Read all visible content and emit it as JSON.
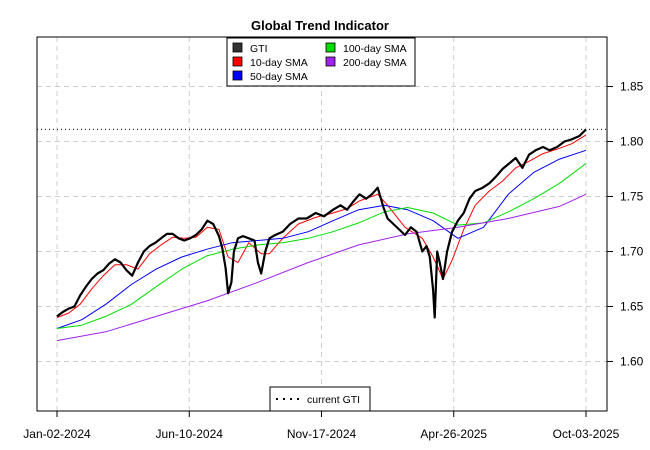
{
  "chart_data": {
    "type": "line",
    "title": "Global Trend Indicator",
    "xlabel": "",
    "ylabel": "",
    "x_tick_labels": [
      "Jan-02-2024",
      "Jun-10-2024",
      "Nov-17-2024",
      "Apr-26-2025",
      "Oct-03-2025"
    ],
    "x_range": [
      "2024-01-02",
      "2025-10-03"
    ],
    "y_ticks": [
      "1.60",
      "1.65",
      "1.70",
      "1.75",
      "1.80",
      "1.85"
    ],
    "ylim": [
      1.555,
      1.895
    ],
    "grid": true,
    "legend_position": "top-center",
    "reference_line": {
      "label": "current GTI",
      "value": 1.811,
      "style": "dotted",
      "legend_position": "bottom-center"
    },
    "series": [
      {
        "name": "GTI",
        "color": "#000000",
        "legend_color": "#333333",
        "points": [
          [
            "2024-01-02",
            1.641
          ],
          [
            "2024-01-09",
            1.645
          ],
          [
            "2024-01-16",
            1.648
          ],
          [
            "2024-01-23",
            1.65
          ],
          [
            "2024-01-30",
            1.66
          ],
          [
            "2024-02-06",
            1.668
          ],
          [
            "2024-02-13",
            1.675
          ],
          [
            "2024-02-20",
            1.68
          ],
          [
            "2024-02-27",
            1.683
          ],
          [
            "2024-03-05",
            1.689
          ],
          [
            "2024-03-12",
            1.693
          ],
          [
            "2024-03-19",
            1.69
          ],
          [
            "2024-03-26",
            1.683
          ],
          [
            "2024-04-02",
            1.678
          ],
          [
            "2024-04-09",
            1.69
          ],
          [
            "2024-04-16",
            1.7
          ],
          [
            "2024-04-23",
            1.705
          ],
          [
            "2024-04-30",
            1.708
          ],
          [
            "2024-05-07",
            1.712
          ],
          [
            "2024-05-14",
            1.716
          ],
          [
            "2024-05-21",
            1.716
          ],
          [
            "2024-05-28",
            1.712
          ],
          [
            "2024-06-04",
            1.71
          ],
          [
            "2024-06-11",
            1.712
          ],
          [
            "2024-06-18",
            1.715
          ],
          [
            "2024-06-25",
            1.72
          ],
          [
            "2024-07-02",
            1.728
          ],
          [
            "2024-07-09",
            1.725
          ],
          [
            "2024-07-16",
            1.714
          ],
          [
            "2024-07-20",
            1.703
          ],
          [
            "2024-07-24",
            1.685
          ],
          [
            "2024-07-27",
            1.662
          ],
          [
            "2024-07-31",
            1.672
          ],
          [
            "2024-08-03",
            1.7
          ],
          [
            "2024-08-08",
            1.712
          ],
          [
            "2024-08-14",
            1.714
          ],
          [
            "2024-08-21",
            1.712
          ],
          [
            "2024-08-28",
            1.71
          ],
          [
            "2024-09-01",
            1.69
          ],
          [
            "2024-09-05",
            1.68
          ],
          [
            "2024-09-10",
            1.7
          ],
          [
            "2024-09-15",
            1.712
          ],
          [
            "2024-09-22",
            1.715
          ],
          [
            "2024-10-01",
            1.718
          ],
          [
            "2024-10-10",
            1.725
          ],
          [
            "2024-10-20",
            1.73
          ],
          [
            "2024-10-30",
            1.73
          ],
          [
            "2024-11-10",
            1.735
          ],
          [
            "2024-11-20",
            1.732
          ],
          [
            "2024-12-01",
            1.738
          ],
          [
            "2024-12-10",
            1.742
          ],
          [
            "2024-12-18",
            1.738
          ],
          [
            "2024-12-25",
            1.745
          ],
          [
            "2025-01-02",
            1.752
          ],
          [
            "2025-01-10",
            1.748
          ],
          [
            "2025-01-17",
            1.752
          ],
          [
            "2025-01-24",
            1.758
          ],
          [
            "2025-01-31",
            1.74
          ],
          [
            "2025-02-05",
            1.73
          ],
          [
            "2025-02-12",
            1.725
          ],
          [
            "2025-02-19",
            1.72
          ],
          [
            "2025-02-26",
            1.715
          ],
          [
            "2025-03-05",
            1.722
          ],
          [
            "2025-03-12",
            1.718
          ],
          [
            "2025-03-19",
            1.7
          ],
          [
            "2025-03-24",
            1.705
          ],
          [
            "2025-03-28",
            1.695
          ],
          [
            "2025-04-01",
            1.665
          ],
          [
            "2025-04-03",
            1.64
          ],
          [
            "2025-04-06",
            1.7
          ],
          [
            "2025-04-09",
            1.69
          ],
          [
            "2025-04-13",
            1.675
          ],
          [
            "2025-04-18",
            1.7
          ],
          [
            "2025-04-24",
            1.718
          ],
          [
            "2025-05-01",
            1.728
          ],
          [
            "2025-05-08",
            1.735
          ],
          [
            "2025-05-15",
            1.748
          ],
          [
            "2025-05-22",
            1.755
          ],
          [
            "2025-05-31",
            1.758
          ],
          [
            "2025-06-08",
            1.762
          ],
          [
            "2025-06-16",
            1.768
          ],
          [
            "2025-06-24",
            1.775
          ],
          [
            "2025-07-02",
            1.78
          ],
          [
            "2025-07-10",
            1.785
          ],
          [
            "2025-07-18",
            1.776
          ],
          [
            "2025-07-26",
            1.788
          ],
          [
            "2025-08-03",
            1.792
          ],
          [
            "2025-08-12",
            1.795
          ],
          [
            "2025-08-20",
            1.792
          ],
          [
            "2025-08-29",
            1.795
          ],
          [
            "2025-09-07",
            1.8
          ],
          [
            "2025-09-16",
            1.802
          ],
          [
            "2025-09-25",
            1.805
          ],
          [
            "2025-10-03",
            1.811
          ]
        ]
      },
      {
        "name": "10-day SMA",
        "color": "#ff0000",
        "legend_color": "#ff0000",
        "points": [
          [
            "2024-01-02",
            1.64
          ],
          [
            "2024-01-16",
            1.644
          ],
          [
            "2024-01-30",
            1.652
          ],
          [
            "2024-02-13",
            1.666
          ],
          [
            "2024-02-27",
            1.678
          ],
          [
            "2024-03-12",
            1.688
          ],
          [
            "2024-03-26",
            1.688
          ],
          [
            "2024-04-09",
            1.684
          ],
          [
            "2024-04-23",
            1.698
          ],
          [
            "2024-05-07",
            1.706
          ],
          [
            "2024-05-21",
            1.713
          ],
          [
            "2024-06-04",
            1.712
          ],
          [
            "2024-06-18",
            1.713
          ],
          [
            "2024-07-02",
            1.722
          ],
          [
            "2024-07-16",
            1.72
          ],
          [
            "2024-07-27",
            1.695
          ],
          [
            "2024-08-08",
            1.69
          ],
          [
            "2024-08-21",
            1.708
          ],
          [
            "2024-09-05",
            1.698
          ],
          [
            "2024-09-15",
            1.698
          ],
          [
            "2024-10-01",
            1.712
          ],
          [
            "2024-10-20",
            1.725
          ],
          [
            "2024-11-10",
            1.731
          ],
          [
            "2024-12-01",
            1.735
          ],
          [
            "2024-12-18",
            1.739
          ],
          [
            "2025-01-02",
            1.746
          ],
          [
            "2025-01-24",
            1.752
          ],
          [
            "2025-02-05",
            1.742
          ],
          [
            "2025-02-26",
            1.722
          ],
          [
            "2025-03-19",
            1.712
          ],
          [
            "2025-04-01",
            1.695
          ],
          [
            "2025-04-13",
            1.675
          ],
          [
            "2025-04-24",
            1.692
          ],
          [
            "2025-05-08",
            1.72
          ],
          [
            "2025-05-22",
            1.742
          ],
          [
            "2025-06-08",
            1.755
          ],
          [
            "2025-06-24",
            1.764
          ],
          [
            "2025-07-10",
            1.776
          ],
          [
            "2025-07-26",
            1.782
          ],
          [
            "2025-08-12",
            1.789
          ],
          [
            "2025-08-29",
            1.793
          ],
          [
            "2025-09-16",
            1.798
          ],
          [
            "2025-10-03",
            1.806
          ]
        ]
      },
      {
        "name": "50-day SMA",
        "color": "#0000ff",
        "legend_color": "#0000ff",
        "points": [
          [
            "2024-01-02",
            1.63
          ],
          [
            "2024-02-01",
            1.638
          ],
          [
            "2024-03-01",
            1.652
          ],
          [
            "2024-04-01",
            1.67
          ],
          [
            "2024-05-01",
            1.684
          ],
          [
            "2024-06-01",
            1.695
          ],
          [
            "2024-07-01",
            1.702
          ],
          [
            "2024-08-01",
            1.708
          ],
          [
            "2024-09-01",
            1.71
          ],
          [
            "2024-10-01",
            1.712
          ],
          [
            "2024-11-01",
            1.718
          ],
          [
            "2024-12-01",
            1.728
          ],
          [
            "2025-01-01",
            1.738
          ],
          [
            "2025-02-01",
            1.742
          ],
          [
            "2025-03-01",
            1.738
          ],
          [
            "2025-04-01",
            1.728
          ],
          [
            "2025-05-01",
            1.712
          ],
          [
            "2025-06-01",
            1.722
          ],
          [
            "2025-07-01",
            1.752
          ],
          [
            "2025-08-01",
            1.772
          ],
          [
            "2025-09-01",
            1.784
          ],
          [
            "2025-10-03",
            1.792
          ]
        ]
      },
      {
        "name": "100-day SMA",
        "color": "#00dd00",
        "legend_color": "#00dd00",
        "points": [
          [
            "2024-01-02",
            1.63
          ],
          [
            "2024-02-01",
            1.633
          ],
          [
            "2024-03-01",
            1.641
          ],
          [
            "2024-04-01",
            1.652
          ],
          [
            "2024-05-01",
            1.668
          ],
          [
            "2024-06-01",
            1.684
          ],
          [
            "2024-07-01",
            1.696
          ],
          [
            "2024-08-01",
            1.702
          ],
          [
            "2024-09-01",
            1.706
          ],
          [
            "2024-10-01",
            1.708
          ],
          [
            "2024-11-01",
            1.712
          ],
          [
            "2024-12-01",
            1.718
          ],
          [
            "2025-01-01",
            1.726
          ],
          [
            "2025-02-01",
            1.736
          ],
          [
            "2025-03-01",
            1.74
          ],
          [
            "2025-04-01",
            1.735
          ],
          [
            "2025-05-01",
            1.724
          ],
          [
            "2025-06-01",
            1.726
          ],
          [
            "2025-07-01",
            1.736
          ],
          [
            "2025-08-01",
            1.748
          ],
          [
            "2025-09-01",
            1.762
          ],
          [
            "2025-10-03",
            1.78
          ]
        ]
      },
      {
        "name": "200-day SMA",
        "color": "#a020f0",
        "legend_color": "#a020f0",
        "points": [
          [
            "2024-01-02",
            1.619
          ],
          [
            "2024-03-01",
            1.627
          ],
          [
            "2024-05-01",
            1.641
          ],
          [
            "2024-07-01",
            1.655
          ],
          [
            "2024-09-01",
            1.672
          ],
          [
            "2024-11-01",
            1.69
          ],
          [
            "2025-01-01",
            1.706
          ],
          [
            "2025-03-01",
            1.716
          ],
          [
            "2025-05-01",
            1.722
          ],
          [
            "2025-07-01",
            1.73
          ],
          [
            "2025-09-01",
            1.741
          ],
          [
            "2025-10-03",
            1.752
          ]
        ]
      }
    ]
  }
}
